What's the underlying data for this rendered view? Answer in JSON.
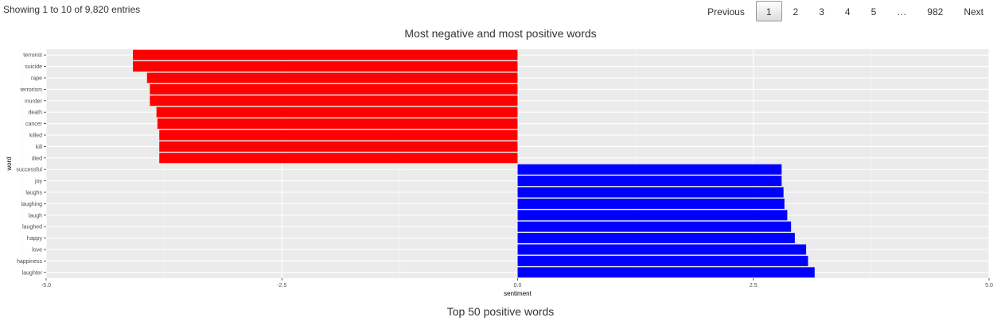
{
  "table_info": "Showing 1 to 10 of 9,820 entries",
  "pagination": {
    "previous": "Previous",
    "pages": [
      "1",
      "2",
      "3",
      "4",
      "5",
      "…",
      "982"
    ],
    "current": "1",
    "next": "Next"
  },
  "chart_title": "Most negative and most positive words",
  "footer_title": "Top 50 positive words",
  "chart_data": {
    "type": "bar",
    "orientation": "horizontal",
    "title": "Most negative and most positive words",
    "xlabel": "sentiment",
    "ylabel": "word",
    "xlim": [
      -5.0,
      5.0
    ],
    "xticks": [
      -5.0,
      -2.5,
      0.0,
      2.5,
      5.0
    ],
    "xtick_labels": [
      "-5.0",
      "-2.5",
      "0.0",
      "2.5",
      "5.0"
    ],
    "grid": true,
    "background": "#ebebeb",
    "negative_color": "#ff0000",
    "positive_color": "#0000ff",
    "categories": [
      "terrorist",
      "suicide",
      "rape",
      "terrorism",
      "murder",
      "death",
      "cancer",
      "killed",
      "kill",
      "died",
      "successful",
      "joy",
      "laughs",
      "laughing",
      "laugh",
      "laughed",
      "happy",
      "love",
      "happiness",
      "laughter"
    ],
    "values": [
      -4.08,
      -4.08,
      -3.93,
      -3.9,
      -3.9,
      -3.83,
      -3.82,
      -3.8,
      -3.8,
      -3.8,
      2.8,
      2.8,
      2.82,
      2.83,
      2.86,
      2.9,
      2.94,
      3.06,
      3.08,
      3.15
    ]
  }
}
